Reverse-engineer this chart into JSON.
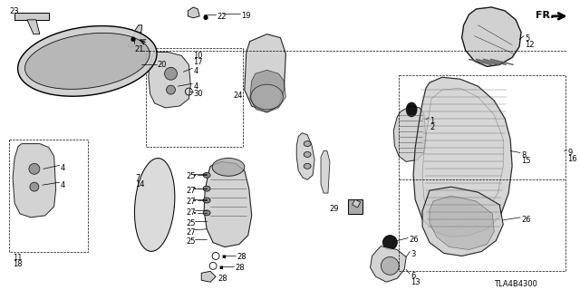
{
  "bg_color": "#ffffff",
  "line_color": "#000000",
  "gray1": "#aaaaaa",
  "gray2": "#cccccc",
  "gray3": "#888888",
  "gray4": "#555555",
  "figsize": [
    6.4,
    3.2
  ],
  "dpi": 100,
  "diagram_code": "TLA4B4300"
}
